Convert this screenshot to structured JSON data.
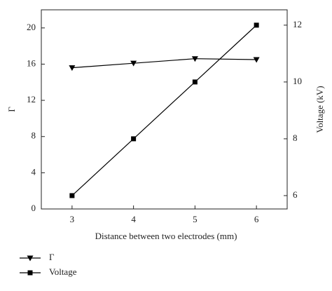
{
  "chart_data": {
    "type": "line",
    "x_label": "Distance between two electrodes (mm)",
    "y_label": "Γ",
    "y2_label": "Voltage (kV)",
    "x": [
      3,
      4,
      5,
      6
    ],
    "series": [
      {
        "name": "Γ",
        "color": "#000000",
        "marker": "triangle-down",
        "values": [
          15.6,
          16.1,
          16.6,
          16.5
        ]
      },
      {
        "name": "Voltage",
        "color": "#000000",
        "marker": "square",
        "axis": "y2",
        "values": [
          6,
          8,
          10,
          12
        ]
      }
    ],
    "xlim": [
      2.5,
      6.5
    ],
    "xticks": [
      3,
      4,
      5,
      6
    ],
    "ylim": [
      0,
      22
    ],
    "yticks": [
      0,
      4,
      8,
      12,
      16,
      20
    ],
    "y2lim": [
      5.53,
      12.54
    ],
    "y2ticks": [
      6,
      8,
      10,
      12
    ],
    "legend": "bottom-left"
  }
}
